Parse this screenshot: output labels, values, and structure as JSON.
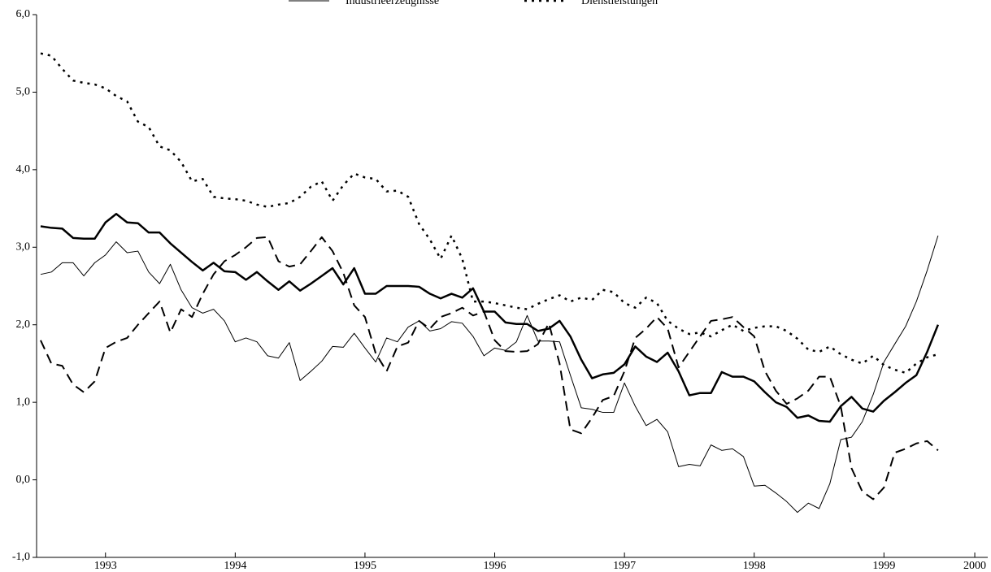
{
  "chart_data": {
    "type": "line",
    "x": [
      1993,
      1993.083,
      1993.167,
      1993.25,
      1993.333,
      1993.417,
      1993.5,
      1993.583,
      1993.667,
      1993.75,
      1993.833,
      1993.917,
      1994,
      1994.083,
      1994.167,
      1994.25,
      1994.333,
      1994.417,
      1994.5,
      1994.583,
      1994.667,
      1994.75,
      1994.833,
      1994.917,
      1995,
      1995.083,
      1995.167,
      1995.25,
      1995.333,
      1995.417,
      1995.5,
      1995.583,
      1995.667,
      1995.75,
      1995.833,
      1995.917,
      1996,
      1996.083,
      1996.167,
      1996.25,
      1996.333,
      1996.417,
      1996.5,
      1996.583,
      1996.667,
      1996.75,
      1996.833,
      1996.917,
      1997,
      1997.083,
      1997.167,
      1997.25,
      1997.333,
      1997.417,
      1997.5,
      1997.583,
      1997.667,
      1997.75,
      1997.833,
      1997.917,
      1998,
      1998.083,
      1998.167,
      1998.25,
      1998.333,
      1998.417,
      1998.5,
      1998.583,
      1998.667,
      1998.75,
      1998.833,
      1998.917,
      1999,
      1999.083,
      1999.167,
      1999.25,
      1999.333,
      1999.417,
      1999.5,
      1999.583,
      1999.667,
      1999.75,
      1999.833,
      1999.917
    ],
    "series": [
      {
        "name": "Industrieerzeugnisse",
        "color": "#000000",
        "width": 1,
        "dash": "none",
        "values": [
          2.65,
          2.68,
          2.8,
          2.8,
          2.63,
          2.8,
          2.9,
          3.07,
          2.93,
          2.95,
          2.68,
          2.53,
          2.78,
          2.45,
          2.22,
          2.15,
          2.2,
          2.05,
          1.78,
          1.83,
          1.78,
          1.6,
          1.57,
          1.77,
          1.28,
          1.4,
          1.53,
          1.72,
          1.71,
          1.89,
          1.7,
          1.52,
          1.83,
          1.78,
          1.97,
          2.05,
          1.92,
          1.95,
          2.04,
          2.02,
          1.85,
          1.6,
          1.7,
          1.67,
          1.78,
          2.12,
          1.79,
          1.79,
          1.78,
          1.35,
          0.93,
          0.91,
          0.87,
          0.87,
          1.25,
          0.95,
          0.7,
          0.78,
          0.62,
          0.17,
          0.2,
          0.18,
          0.45,
          0.38,
          0.4,
          0.3,
          -0.08,
          -0.07,
          -0.17,
          -0.28,
          -0.42,
          -0.3,
          -0.37,
          -0.05,
          0.52,
          0.55,
          0.75,
          1.1,
          1.52,
          1.75,
          1.98,
          2.3,
          2.7,
          3.15
        ]
      },
      {
        "name": "Dienstleistungen",
        "color": "#000000",
        "width": 2.5,
        "dash": "3 6",
        "values": [
          5.5,
          5.47,
          5.3,
          5.15,
          5.12,
          5.1,
          5.05,
          4.95,
          4.88,
          4.62,
          4.55,
          4.3,
          4.25,
          4.1,
          3.85,
          3.88,
          3.65,
          3.63,
          3.62,
          3.6,
          3.55,
          3.52,
          3.55,
          3.57,
          3.65,
          3.78,
          3.85,
          3.6,
          3.8,
          3.95,
          3.9,
          3.88,
          3.72,
          3.73,
          3.65,
          3.3,
          3.1,
          2.85,
          3.15,
          2.85,
          2.3,
          2.3,
          2.28,
          2.25,
          2.22,
          2.2,
          2.27,
          2.33,
          2.38,
          2.3,
          2.35,
          2.32,
          2.45,
          2.42,
          2.28,
          2.22,
          2.35,
          2.28,
          2.05,
          1.95,
          1.88,
          1.9,
          1.85,
          1.93,
          2.0,
          1.92,
          1.96,
          1.98,
          1.98,
          1.92,
          1.82,
          1.68,
          1.65,
          1.72,
          1.62,
          1.55,
          1.5,
          1.6,
          1.48,
          1.42,
          1.38,
          1.5,
          1.58,
          1.62
        ]
      },
      {
        "color": "#000000",
        "width": 2.5,
        "dash": "none",
        "values": [
          3.27,
          3.25,
          3.24,
          3.12,
          3.11,
          3.11,
          3.32,
          3.43,
          3.32,
          3.31,
          3.19,
          3.19,
          3.05,
          2.93,
          2.81,
          2.7,
          2.8,
          2.69,
          2.68,
          2.58,
          2.68,
          2.56,
          2.45,
          2.56,
          2.44,
          2.53,
          2.63,
          2.73,
          2.52,
          2.73,
          2.4,
          2.4,
          2.5,
          2.5,
          2.5,
          2.49,
          2.4,
          2.34,
          2.4,
          2.35,
          2.47,
          2.17,
          2.17,
          2.03,
          2.01,
          2.01,
          1.92,
          1.95,
          2.05,
          1.85,
          1.55,
          1.31,
          1.36,
          1.38,
          1.49,
          1.72,
          1.59,
          1.52,
          1.64,
          1.4,
          1.09,
          1.12,
          1.12,
          1.39,
          1.33,
          1.33,
          1.27,
          1.13,
          1.0,
          0.94,
          0.8,
          0.83,
          0.76,
          0.75,
          0.95,
          1.07,
          0.92,
          0.88,
          1.02,
          1.13,
          1.25,
          1.35,
          1.65,
          2.0
        ]
      },
      {
        "color": "#000000",
        "width": 2,
        "dash": "12 7",
        "values": [
          1.8,
          1.5,
          1.47,
          1.23,
          1.13,
          1.27,
          1.7,
          1.78,
          1.83,
          2.0,
          2.15,
          2.3,
          1.9,
          2.2,
          2.1,
          2.4,
          2.65,
          2.82,
          2.9,
          3.0,
          3.12,
          3.13,
          2.82,
          2.75,
          2.78,
          2.95,
          3.13,
          2.95,
          2.67,
          2.25,
          2.1,
          1.63,
          1.4,
          1.72,
          1.77,
          2.05,
          1.95,
          2.1,
          2.15,
          2.22,
          2.12,
          2.17,
          1.8,
          1.66,
          1.65,
          1.66,
          1.75,
          2.02,
          1.5,
          0.65,
          0.6,
          0.8,
          1.03,
          1.08,
          1.4,
          1.83,
          1.95,
          2.1,
          1.95,
          1.45,
          1.65,
          1.85,
          2.05,
          2.07,
          2.1,
          1.97,
          1.85,
          1.4,
          1.15,
          0.98,
          1.05,
          1.15,
          1.33,
          1.33,
          0.95,
          0.15,
          -0.15,
          -0.25,
          -0.1,
          0.35,
          0.4,
          0.47,
          0.5,
          0.38
        ]
      }
    ],
    "xlim": [
      1992.969,
      2000.3
    ],
    "xticks": [
      {
        "value": 1993.5,
        "label": "1993"
      },
      {
        "value": 1994.5,
        "label": "1994"
      },
      {
        "value": 1995.5,
        "label": "1995"
      },
      {
        "value": 1996.5,
        "label": "1996"
      },
      {
        "value": 1997.5,
        "label": "1997"
      },
      {
        "value": 1998.5,
        "label": "1998"
      },
      {
        "value": 1999.5,
        "label": "1999"
      },
      {
        "value": 2000.2,
        "label": "2000"
      }
    ],
    "ylim": [
      -1,
      6
    ],
    "yticks": [
      {
        "value": -1,
        "label": "-1,0"
      },
      {
        "value": 0,
        "label": "0,0"
      },
      {
        "value": 1,
        "label": "1,0"
      },
      {
        "value": 2,
        "label": "2,0"
      },
      {
        "value": 3,
        "label": "3,0"
      },
      {
        "value": 4,
        "label": "4,0"
      },
      {
        "value": 5,
        "label": "5,0"
      },
      {
        "value": 6,
        "label": "6,0"
      }
    ],
    "grid": false,
    "legend": "top"
  }
}
